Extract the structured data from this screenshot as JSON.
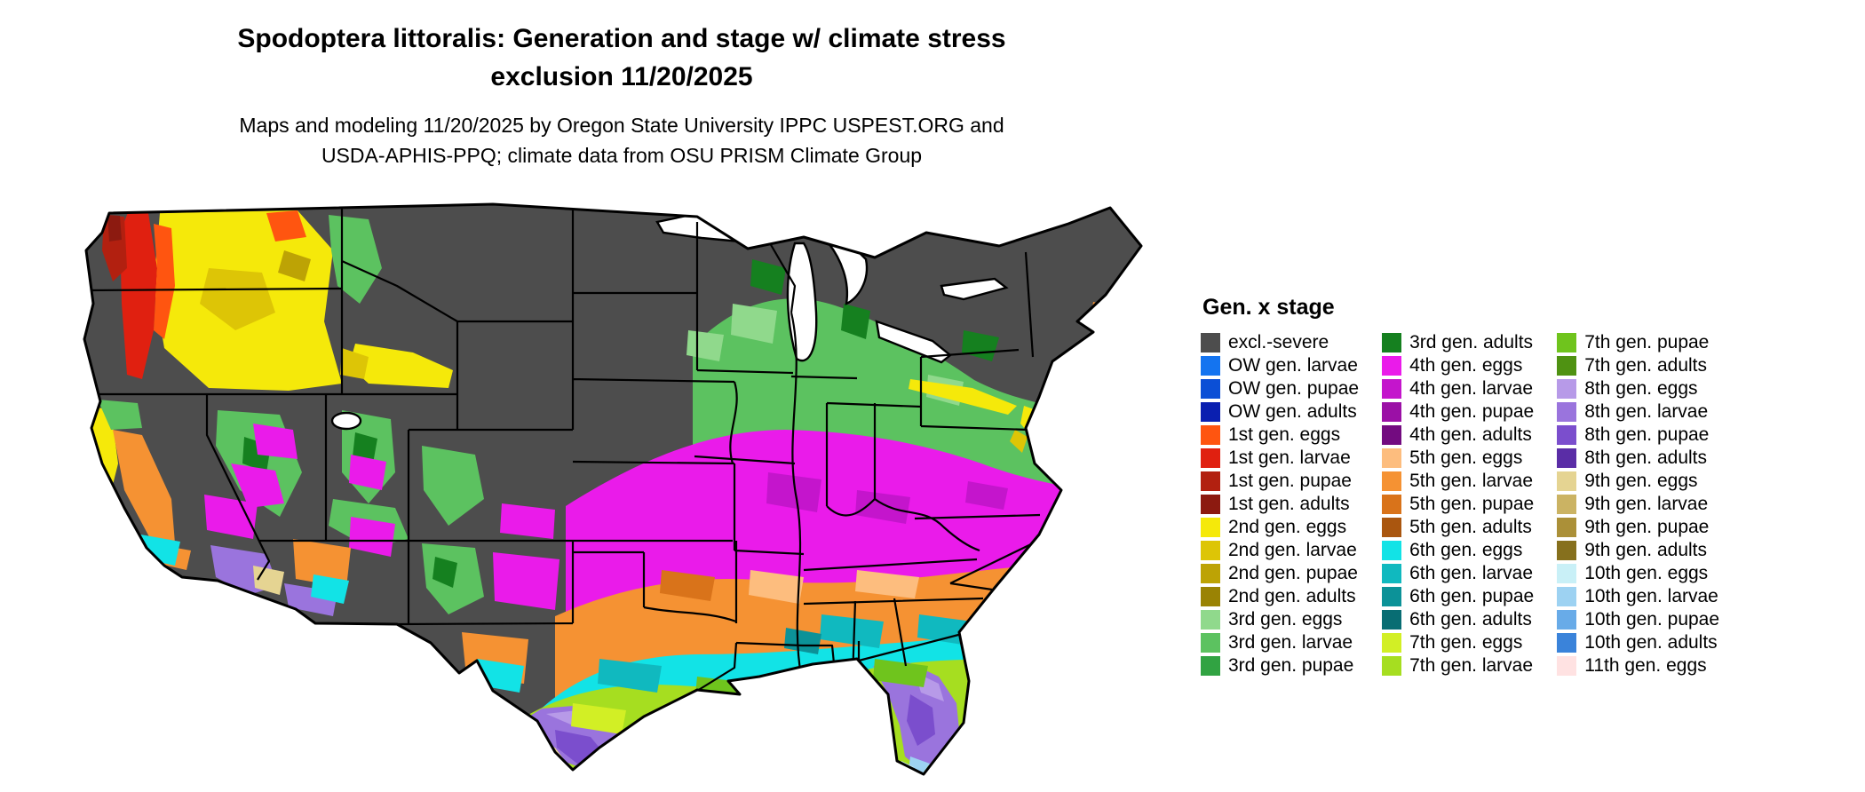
{
  "header": {
    "title_line1": "Spodoptera littoralis: Generation and stage w/ climate stress",
    "title_line2": "exclusion 11/20/2025",
    "subtitle_line1": "Maps and modeling 11/20/2025 by Oregon State University IPPC USPEST.ORG and",
    "subtitle_line2": "USDA-APHIS-PPQ; climate data from OSU PRISM Climate Group"
  },
  "legend": {
    "title": "Gen. x stage",
    "columns": [
      {
        "items": [
          {
            "label": "excl.-severe",
            "color": "#4d4d4d"
          },
          {
            "label": "OW gen. larvae",
            "color": "#1474f0"
          },
          {
            "label": "OW gen. pupae",
            "color": "#0b4fd6"
          },
          {
            "label": "OW gen. adults",
            "color": "#0a1fb0"
          },
          {
            "label": "1st gen. eggs",
            "color": "#ff5510"
          },
          {
            "label": "1st gen. larvae",
            "color": "#e02010"
          },
          {
            "label": "1st gen. pupae",
            "color": "#b22010"
          },
          {
            "label": "1st gen. adults",
            "color": "#8c1a10"
          },
          {
            "label": "2nd gen. eggs",
            "color": "#f5e90a"
          },
          {
            "label": "2nd gen. larvae",
            "color": "#ddc506"
          },
          {
            "label": "2nd gen. pupae",
            "color": "#bda305"
          },
          {
            "label": "2nd gen. adults",
            "color": "#9a8304"
          },
          {
            "label": "3rd gen. eggs",
            "color": "#90d98c"
          },
          {
            "label": "3rd gen. larvae",
            "color": "#5cc260"
          },
          {
            "label": "3rd gen. pupae",
            "color": "#31a342"
          }
        ]
      },
      {
        "items": [
          {
            "label": "3rd gen. adults",
            "color": "#15801f"
          },
          {
            "label": "4th gen. eggs",
            "color": "#ea1bea"
          },
          {
            "label": "4th gen. larvae",
            "color": "#c415cc"
          },
          {
            "label": "4th gen. pupae",
            "color": "#9b10a6"
          },
          {
            "label": "4th gen. adults",
            "color": "#730b80"
          },
          {
            "label": "5th gen. eggs",
            "color": "#fdbd7e"
          },
          {
            "label": "5th gen. larvae",
            "color": "#f59233"
          },
          {
            "label": "5th gen. pupae",
            "color": "#d9731a"
          },
          {
            "label": "5th gen. adults",
            "color": "#aa560f"
          },
          {
            "label": "6th gen. eggs",
            "color": "#12e3e6"
          },
          {
            "label": "6th gen. larvae",
            "color": "#10b9bf"
          },
          {
            "label": "6th gen. pupae",
            "color": "#0c9298"
          },
          {
            "label": "6th gen. adults",
            "color": "#086d73"
          },
          {
            "label": "7th gen. eggs",
            "color": "#d2ef25"
          },
          {
            "label": "7th gen. larvae",
            "color": "#a6de20"
          }
        ]
      },
      {
        "items": [
          {
            "label": "7th gen. pupae",
            "color": "#6fc41d"
          },
          {
            "label": "7th gen. adults",
            "color": "#4f9212"
          },
          {
            "label": "8th gen. eggs",
            "color": "#b79ae8"
          },
          {
            "label": "8th gen. larvae",
            "color": "#9a74dd"
          },
          {
            "label": "8th gen. pupae",
            "color": "#7b4ecd"
          },
          {
            "label": "8th gen. adults",
            "color": "#5a2da6"
          },
          {
            "label": "9th gen. eggs",
            "color": "#e5d492"
          },
          {
            "label": "9th gen. larvae",
            "color": "#cbb363"
          },
          {
            "label": "9th gen. pupae",
            "color": "#ab9038"
          },
          {
            "label": "9th gen. adults",
            "color": "#86701d"
          },
          {
            "label": "10th gen. eggs",
            "color": "#c9f0f7"
          },
          {
            "label": "10th gen. larvae",
            "color": "#9dd2f2"
          },
          {
            "label": "10th gen. pupae",
            "color": "#68abe8"
          },
          {
            "label": "10th gen. adults",
            "color": "#3a83da"
          },
          {
            "label": "11th gen. eggs",
            "color": "#ffe2e2"
          }
        ]
      }
    ]
  },
  "map": {
    "outline_color": "#000000",
    "water_color": "#ffffff"
  }
}
